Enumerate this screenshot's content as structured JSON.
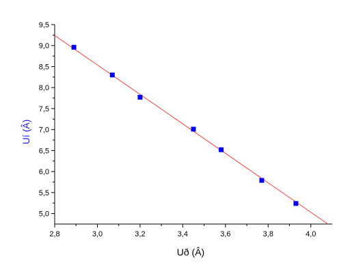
{
  "chart_data": {
    "type": "scatter",
    "xlabel": "Uð (Â)",
    "ylabel": "Uí (Â)",
    "xlim": [
      2.8,
      4.1
    ],
    "ylim": [
      4.75,
      9.5
    ],
    "x_ticks": [
      2.8,
      3.0,
      3.2,
      3.4,
      3.6,
      3.8,
      4.0
    ],
    "x_tick_labels": [
      "2,8",
      "3,0",
      "3,2",
      "3,4",
      "3,6",
      "3,8",
      "4,0"
    ],
    "y_ticks": [
      5.0,
      5.5,
      6.0,
      6.5,
      7.0,
      7.5,
      8.0,
      8.5,
      9.0,
      9.5
    ],
    "y_tick_labels": [
      "5,0",
      "5,5",
      "6,0",
      "6,5",
      "7,0",
      "7,5",
      "8,0",
      "8,5",
      "9,0",
      "9,5"
    ],
    "points": [
      {
        "x": 2.89,
        "y": 8.96
      },
      {
        "x": 3.07,
        "y": 8.3
      },
      {
        "x": 3.2,
        "y": 7.77
      },
      {
        "x": 3.45,
        "y": 7.01
      },
      {
        "x": 3.58,
        "y": 6.52
      },
      {
        "x": 3.77,
        "y": 5.79
      },
      {
        "x": 3.93,
        "y": 5.24
      }
    ],
    "fit_line": {
      "x": [
        2.8,
        4.08
      ],
      "y": [
        9.24,
        4.75
      ]
    },
    "grid": false,
    "legend": "none",
    "colors": {
      "points": "#0000ee",
      "line": "#ff3b3b",
      "ylabel": "#1a1aff",
      "axis": "#000000"
    }
  }
}
